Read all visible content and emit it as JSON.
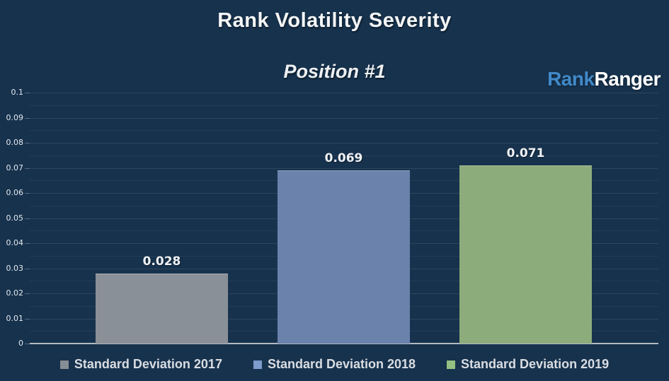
{
  "page": {
    "background_color": "#17324d"
  },
  "header": {
    "title": "Rank Volatility Severity",
    "subtitle": "Position #1",
    "logo": {
      "part1": "Rank",
      "part2": "Ranger",
      "part1_color": "#418ac9",
      "part2_color": "#ffffff"
    }
  },
  "chart_data": {
    "type": "bar",
    "title": "Rank Volatility Severity",
    "subtitle": "Position #1",
    "categories": [
      "Standard Deviation 2017",
      "Standard Deviation 2018",
      "Standard Deviation 2019"
    ],
    "values": [
      0.028,
      0.069,
      0.071
    ],
    "value_labels": [
      "0.028",
      "0.069",
      "0.071"
    ],
    "bar_colors": [
      "#8a9097",
      "#6a82ac",
      "#8dac7c"
    ],
    "legend_marker_colors": [
      "#878d94",
      "#7e9bcd",
      "#92c181"
    ],
    "ylim": [
      0,
      0.1
    ],
    "y_tick_labels": [
      "0.1",
      "0.09",
      "0.08",
      "0.07",
      "0.06",
      "0.05",
      "0.04",
      "0.03",
      "0.02",
      "0.01",
      "0"
    ],
    "major_tick_interval": 0.01,
    "minor_tick_interval": 0.005,
    "grid": "horizontal",
    "legend_position": "bottom",
    "legend": [
      {
        "label": "Standard Deviation 2017",
        "color": "#878d94"
      },
      {
        "label": "Standard Deviation 2018",
        "color": "#7e9bcd"
      },
      {
        "label": "Standard Deviation 2019",
        "color": "#92c181"
      }
    ]
  }
}
